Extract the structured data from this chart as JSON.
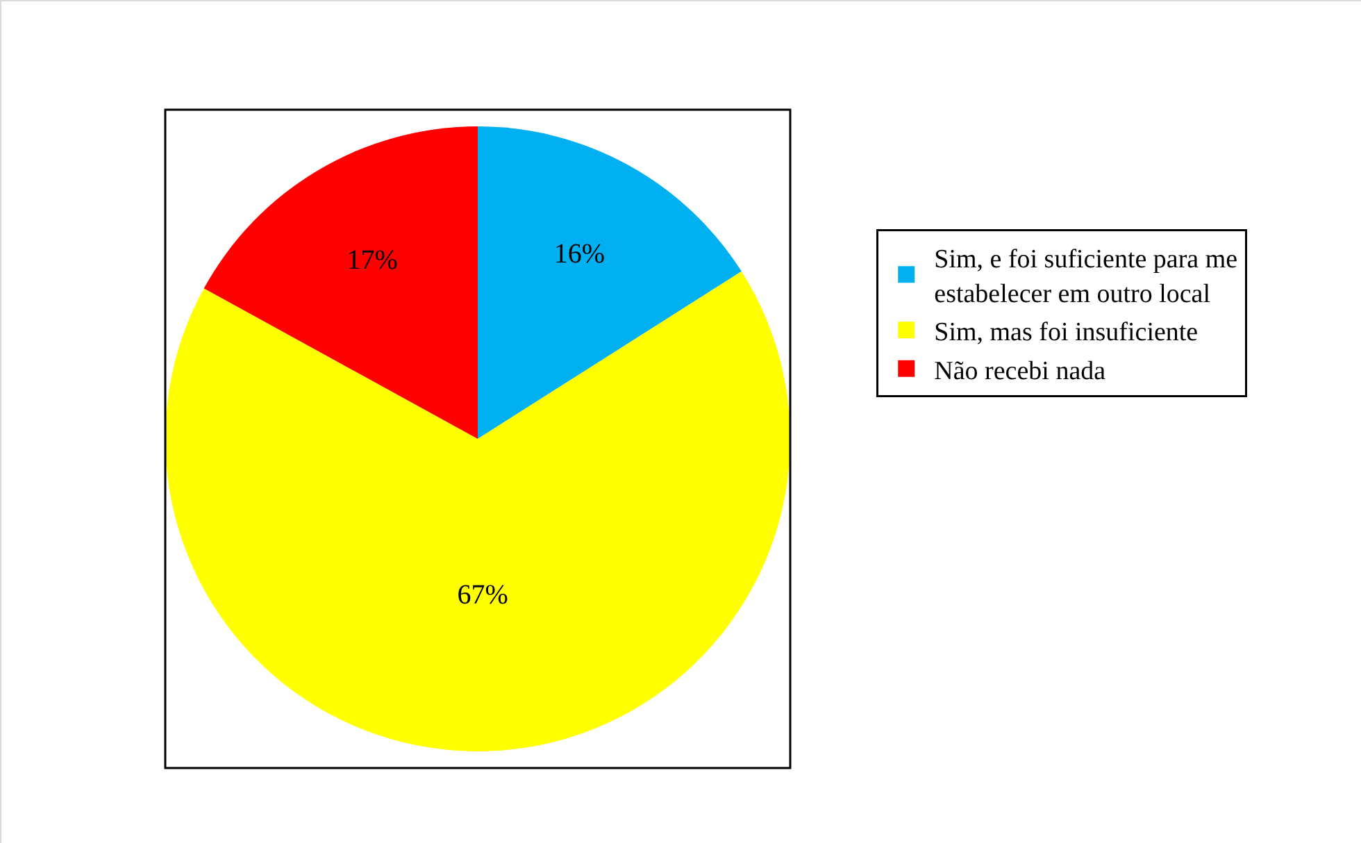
{
  "chart_data": {
    "type": "pie",
    "categories": [
      "Sim, e foi suficiente para me estabelecer em outro local",
      "Sim, mas foi insuficiente",
      "Não recebi nada"
    ],
    "values": [
      16,
      67,
      17
    ],
    "colors": [
      "#00b0f0",
      "#ffff00",
      "#ff0000"
    ],
    "value_labels": [
      "16%",
      "67%",
      "17%"
    ],
    "legend": "right"
  }
}
